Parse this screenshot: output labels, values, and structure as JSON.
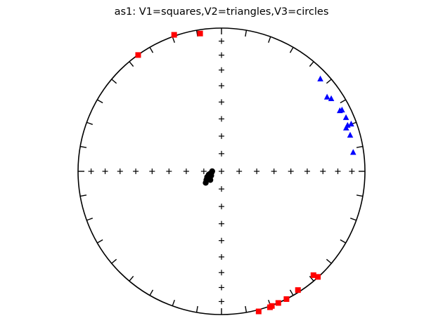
{
  "chart_data": {
    "type": "scatter",
    "projection": "equal-area stereonet (lower hemisphere)",
    "title": "as1: V1=squares,V2=triangles,V3=circles",
    "grid": false,
    "legend": "none",
    "axes_visible": false,
    "series": [
      {
        "name": "V1",
        "marker": "square",
        "color": "#ff0000",
        "x": [
          -0.581,
          -0.33,
          -0.149,
          0.259,
          0.338,
          0.351,
          0.396,
          0.453,
          0.533,
          0.641,
          0.672
        ],
        "y": [
          0.812,
          0.953,
          0.962,
          -0.978,
          -0.949,
          -0.94,
          -0.919,
          -0.892,
          -0.829,
          -0.725,
          -0.737
        ]
      },
      {
        "name": "V2",
        "marker": "triangle",
        "color": "#0000ff",
        "x": [
          0.689,
          0.736,
          0.765,
          0.825,
          0.84,
          0.868,
          0.879,
          0.869,
          0.904,
          0.897,
          0.918
        ],
        "y": [
          0.645,
          0.518,
          0.507,
          0.423,
          0.428,
          0.375,
          0.321,
          0.302,
          0.33,
          0.252,
          0.132
        ]
      },
      {
        "name": "V3",
        "marker": "circle",
        "color": "#000000",
        "x": [
          -0.11,
          -0.095,
          -0.1,
          -0.085,
          -0.07,
          -0.065,
          -0.078,
          -0.072,
          -0.09,
          -0.105
        ],
        "y": [
          -0.08,
          -0.05,
          -0.04,
          -0.02,
          -0.01,
          0.0,
          -0.06,
          -0.03,
          -0.025,
          -0.06
        ]
      }
    ]
  }
}
